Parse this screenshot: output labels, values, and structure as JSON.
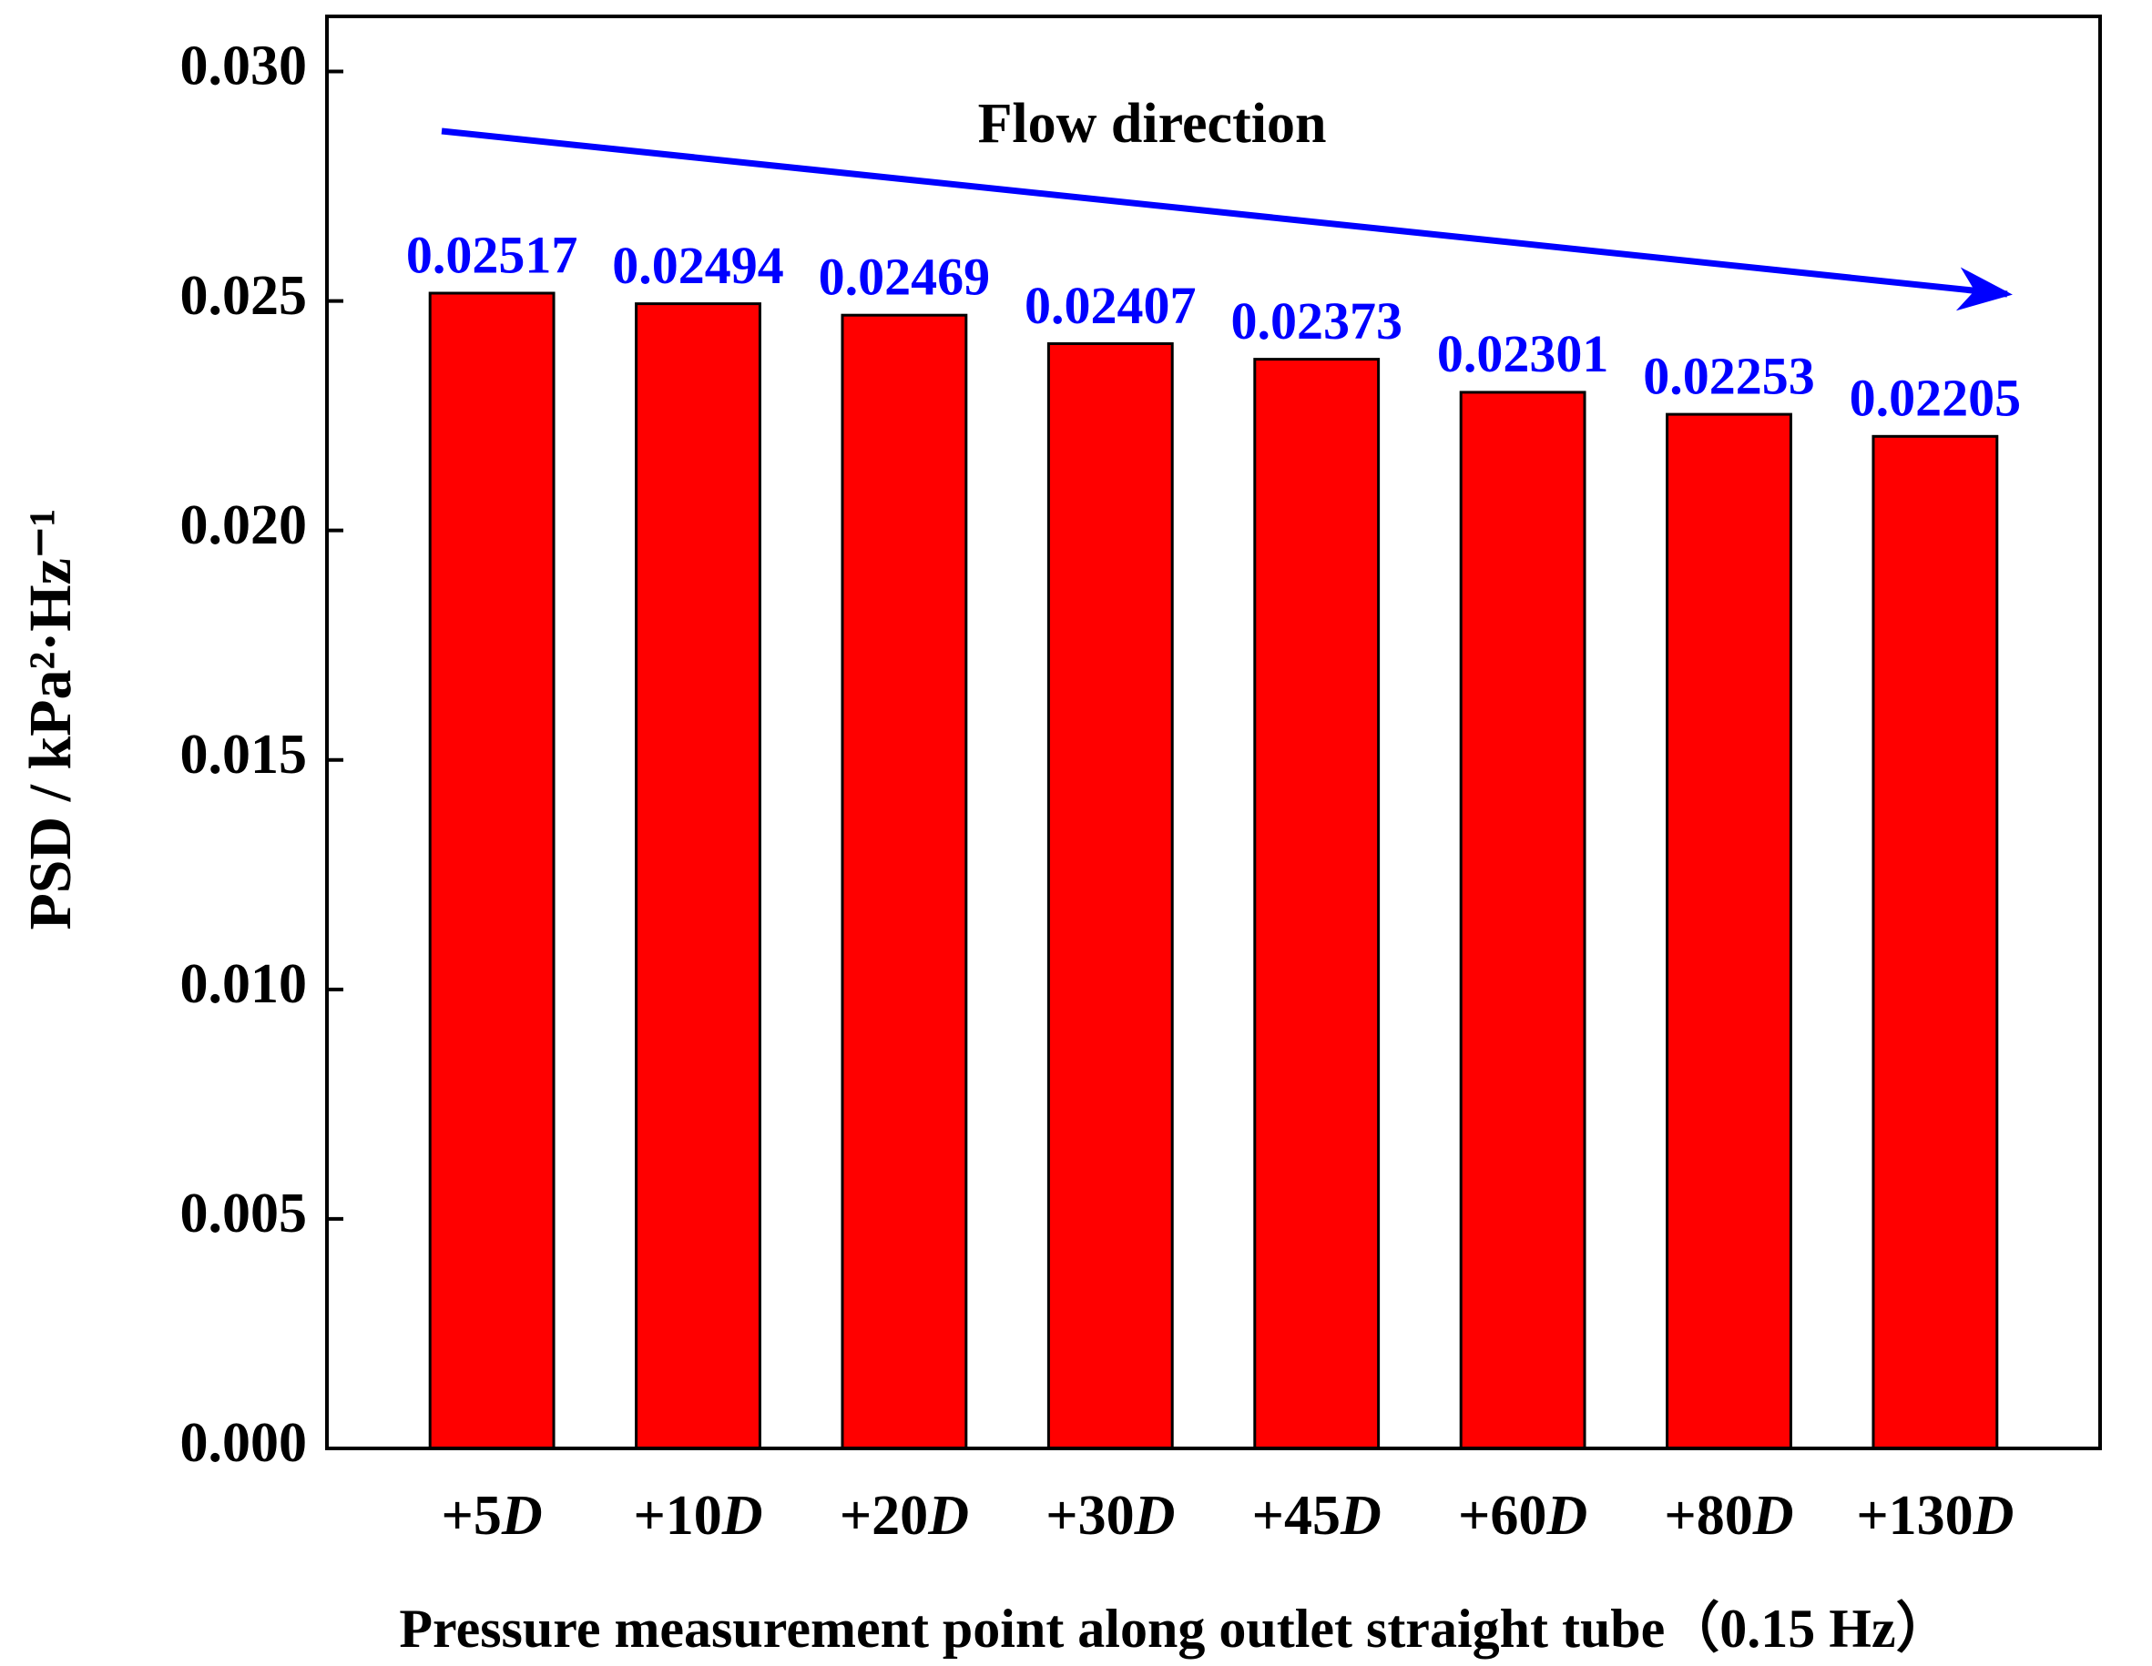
{
  "chart_data": {
    "type": "bar",
    "annotation": "Flow direction",
    "x_label": "Pressure measurement point along outlet straight tube（0.15 Hz）",
    "y_label": "PSD / kPa²·Hz⁻¹",
    "categories": [
      "+5D",
      "+10D",
      "+20D",
      "+30D",
      "+45D",
      "+60D",
      "+80D",
      "+130D"
    ],
    "values": [
      0.02517,
      0.02494,
      0.02469,
      0.02407,
      0.02373,
      0.02301,
      0.02253,
      0.02205
    ],
    "color": "#ff0000",
    "label_color": "#0000ff",
    "arrow_color": "#0000ff",
    "ylim": [
      0,
      0.0312
    ],
    "yticks": [
      {
        "value": 0,
        "label": "0.000"
      },
      {
        "value": 0.005,
        "label": "0.005"
      },
      {
        "value": 0.01,
        "label": "0.010"
      },
      {
        "value": 0.015,
        "label": "0.015"
      },
      {
        "value": 0.02,
        "label": "0.020"
      },
      {
        "value": 0.025,
        "label": "0.025"
      },
      {
        "value": 0.03,
        "label": "0.030"
      }
    ],
    "grid": false
  }
}
